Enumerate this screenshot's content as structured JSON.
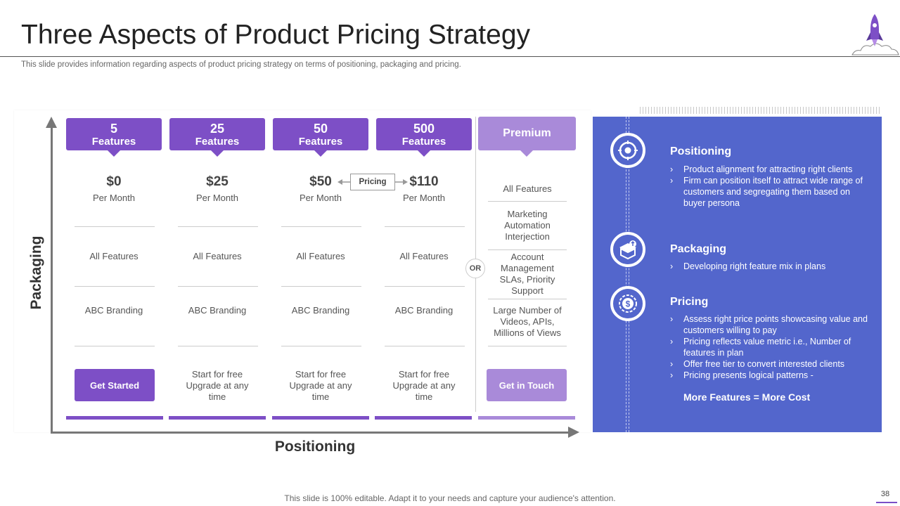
{
  "header": {
    "title": "Three Aspects of Product Pricing Strategy",
    "subtitle": "This slide provides information regarding aspects of product pricing strategy on terms of positioning, packaging and pricing."
  },
  "axes": {
    "y_label": "Packaging",
    "x_label": "Positioning"
  },
  "tiers": [
    {
      "number": "5",
      "unit": "Features",
      "price": "$0",
      "period": "Per Month",
      "features": "All Features",
      "branding": "ABC Branding",
      "cta": "Get Started"
    },
    {
      "number": "25",
      "unit": "Features",
      "price": "$25",
      "period": "Per Month",
      "features": "All Features",
      "branding": "ABC Branding",
      "cta": "Start for free Upgrade at any time"
    },
    {
      "number": "50",
      "unit": "Features",
      "price": "$50",
      "period": "Per Month",
      "features": "All Features",
      "branding": "ABC Branding",
      "cta": "Start for free Upgrade at any time"
    },
    {
      "number": "500",
      "unit": "Features",
      "price": "$110",
      "period": "Per Month",
      "features": "All Features",
      "branding": "ABC Branding",
      "cta": "Start for free Upgrade at any time"
    }
  ],
  "pricing_tag": "Pricing",
  "or_label": "OR",
  "premium": {
    "title": "Premium",
    "items": [
      "All Features",
      "Marketing Automation Interjection",
      "Account Management SLAs, Priority Support",
      "Large Number of Videos, APIs, Millions of Views"
    ],
    "cta": "Get in Touch"
  },
  "panel": {
    "positioning": {
      "title": "Positioning",
      "bullets": [
        "Product alignment for attracting right clients",
        "Firm can position itself to attract wide range of customers and segregating them based on buyer persona"
      ]
    },
    "packaging": {
      "title": "Packaging",
      "bullets": [
        "Developing  right feature mix in plans"
      ]
    },
    "pricing": {
      "title": "Pricing",
      "bullets": [
        "Assess right price points showcasing value and customers willing to pay",
        "Pricing reflects value metric i.e., Number of features in plan",
        "Offer free tier to convert  interested clients",
        "Pricing presents logical patterns -"
      ],
      "emphasis": "More Features = More Cost"
    }
  },
  "footer": {
    "note": "This slide is 100% editable. Adapt it to your needs and capture your audience's attention.",
    "page": "38"
  },
  "colors": {
    "purple": "#7d4fc6",
    "light_purple": "#a98ad9",
    "panel_blue": "#5366cc"
  }
}
